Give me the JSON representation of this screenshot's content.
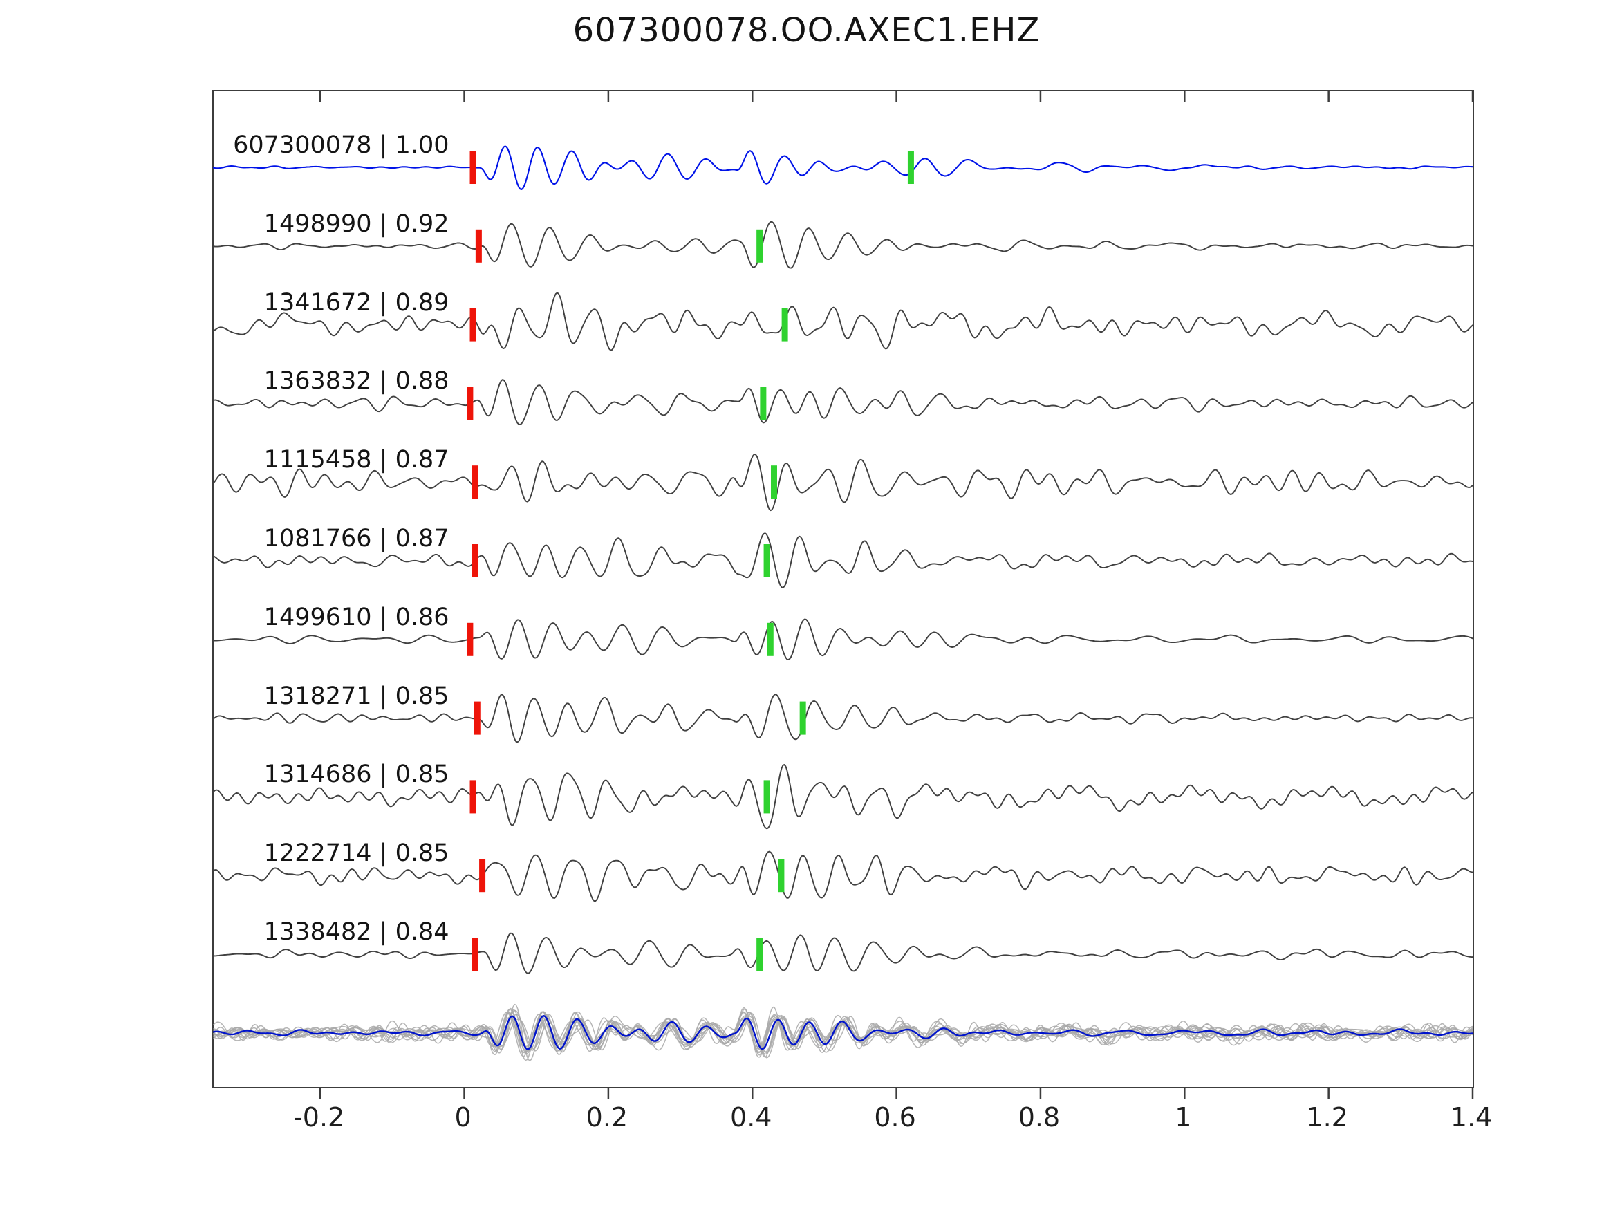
{
  "title": "607300078.OO.AXEC1.EHZ",
  "colors": {
    "reference_trace": "#0013e8",
    "matched_trace": "#404040",
    "stack_overlay": "#a8a8a8",
    "stack_mean": "#0013cc",
    "pick_primary": "#ee1409",
    "pick_secondary": "#2fd22f",
    "axis": "#3c3c3c",
    "text": "#141414"
  },
  "x_axis": {
    "min": -0.348,
    "max": 1.4,
    "tick_values": [
      -0.2,
      0,
      0.2,
      0.4,
      0.6,
      0.8,
      1,
      1.2,
      1.4
    ],
    "tick_labels": [
      "-0.2",
      "0",
      "0.2",
      "0.4",
      "0.6",
      "0.8",
      "1",
      "1.2",
      "1.4"
    ]
  },
  "chart_data": {
    "type": "line",
    "title": "607300078.OO.AXEC1.EHZ",
    "xlabel": "",
    "ylabel": "",
    "x_range": [
      -0.348,
      1.4
    ],
    "grid": false,
    "legend": "none",
    "description": "Stacked seismic waveform traces: reference event on top (blue), correlated events below (dark gray), bottom row shows all aligned traces overlaid (gray) with mean trace (blue). Red bars mark alignment picks near x=0; green bars mark secondary picks near x=0.4-0.62.",
    "traces": [
      {
        "label": "607300078 | 1.00",
        "event_id": "607300078",
        "correlation": 1.0,
        "is_reference": true,
        "red_pick_x": 0.012,
        "green_pick_x": 0.62,
        "pre_noise": 0.02
      },
      {
        "label": "1498990 | 0.92",
        "event_id": "1498990",
        "correlation": 0.92,
        "is_reference": false,
        "red_pick_x": 0.02,
        "green_pick_x": 0.41,
        "pre_noise": 0.05
      },
      {
        "label": "1341672 | 0.89",
        "event_id": "1341672",
        "correlation": 0.89,
        "is_reference": false,
        "red_pick_x": 0.012,
        "green_pick_x": 0.445,
        "pre_noise": 0.2
      },
      {
        "label": "1363832 | 0.88",
        "event_id": "1363832",
        "correlation": 0.88,
        "is_reference": false,
        "red_pick_x": 0.008,
        "green_pick_x": 0.415,
        "pre_noise": 0.1
      },
      {
        "label": "1115458 | 0.87",
        "event_id": "1115458",
        "correlation": 0.87,
        "is_reference": false,
        "red_pick_x": 0.015,
        "green_pick_x": 0.43,
        "pre_noise": 0.24
      },
      {
        "label": "1081766 | 0.87",
        "event_id": "1081766",
        "correlation": 0.87,
        "is_reference": false,
        "red_pick_x": 0.015,
        "green_pick_x": 0.42,
        "pre_noise": 0.12
      },
      {
        "label": "1499610 | 0.86",
        "event_id": "1499610",
        "correlation": 0.86,
        "is_reference": false,
        "red_pick_x": 0.008,
        "green_pick_x": 0.425,
        "pre_noise": 0.06
      },
      {
        "label": "1318271 | 0.85",
        "event_id": "1318271",
        "correlation": 0.85,
        "is_reference": false,
        "red_pick_x": 0.018,
        "green_pick_x": 0.47,
        "pre_noise": 0.08
      },
      {
        "label": "1314686 | 0.85",
        "event_id": "1314686",
        "correlation": 0.85,
        "is_reference": false,
        "red_pick_x": 0.012,
        "green_pick_x": 0.42,
        "pre_noise": 0.2
      },
      {
        "label": "1222714 | 0.85",
        "event_id": "1222714",
        "correlation": 0.85,
        "is_reference": false,
        "red_pick_x": 0.025,
        "green_pick_x": 0.44,
        "pre_noise": 0.16
      },
      {
        "label": "1338482 | 0.84",
        "event_id": "1338482",
        "correlation": 0.84,
        "is_reference": false,
        "red_pick_x": 0.015,
        "green_pick_x": 0.41,
        "pre_noise": 0.07
      }
    ],
    "stack": {
      "overlay_count": 12,
      "has_mean_trace": true
    },
    "waveform_summary": {
      "first_burst_x": 0.02,
      "second_burst_x": 0.38,
      "coda_end_x": 0.9
    }
  }
}
